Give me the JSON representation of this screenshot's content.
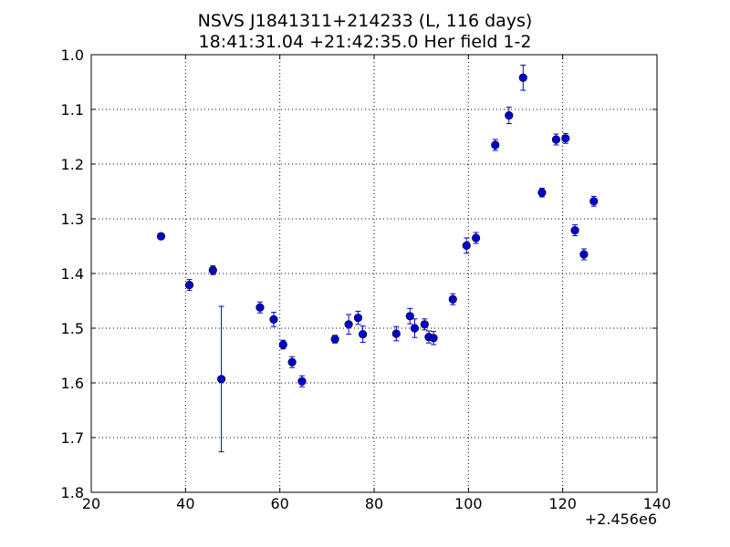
{
  "chart_data": {
    "type": "scatter",
    "title": "NSVS J1841311+214233 (L, 116 days)",
    "subtitle": "18:41:31.04 +21:42:35.0 Her field 1-2",
    "xlabel": "",
    "ylabel": "",
    "x_offset_label": "+2.456e6",
    "xlim": [
      20,
      140
    ],
    "ylim": [
      1.8,
      1.0
    ],
    "y_inverted": true,
    "x_ticks": [
      20,
      40,
      60,
      80,
      100,
      120,
      140
    ],
    "x_tick_labels": [
      "20",
      "40",
      "60",
      "80",
      "100",
      "120",
      "140"
    ],
    "y_ticks": [
      1.0,
      1.1,
      1.2,
      1.3,
      1.4,
      1.5,
      1.6,
      1.7,
      1.8
    ],
    "y_tick_labels": [
      "1.0",
      "1.1",
      "1.2",
      "1.3",
      "1.4",
      "1.5",
      "1.6",
      "1.7",
      "1.8"
    ],
    "grid": true,
    "marker_color": "#0000cc",
    "points": [
      {
        "x": 34.8,
        "y": 1.332,
        "err": 0.005
      },
      {
        "x": 40.8,
        "y": 1.421,
        "err": 0.01
      },
      {
        "x": 45.8,
        "y": 1.394,
        "err": 0.008
      },
      {
        "x": 47.6,
        "y": 1.593,
        "err": 0.133
      },
      {
        "x": 55.8,
        "y": 1.462,
        "err": 0.01
      },
      {
        "x": 58.7,
        "y": 1.484,
        "err": 0.013
      },
      {
        "x": 60.7,
        "y": 1.53,
        "err": 0.008
      },
      {
        "x": 62.6,
        "y": 1.562,
        "err": 0.01
      },
      {
        "x": 64.7,
        "y": 1.597,
        "err": 0.01
      },
      {
        "x": 71.7,
        "y": 1.52,
        "err": 0.007
      },
      {
        "x": 74.6,
        "y": 1.493,
        "err": 0.018
      },
      {
        "x": 76.6,
        "y": 1.481,
        "err": 0.012
      },
      {
        "x": 77.6,
        "y": 1.511,
        "err": 0.015
      },
      {
        "x": 84.7,
        "y": 1.51,
        "err": 0.013
      },
      {
        "x": 87.6,
        "y": 1.478,
        "err": 0.014
      },
      {
        "x": 88.6,
        "y": 1.5,
        "err": 0.017
      },
      {
        "x": 90.7,
        "y": 1.493,
        "err": 0.01
      },
      {
        "x": 91.6,
        "y": 1.516,
        "err": 0.011
      },
      {
        "x": 92.6,
        "y": 1.518,
        "err": 0.012
      },
      {
        "x": 96.7,
        "y": 1.447,
        "err": 0.01
      },
      {
        "x": 99.6,
        "y": 1.349,
        "err": 0.014
      },
      {
        "x": 101.6,
        "y": 1.335,
        "err": 0.01
      },
      {
        "x": 105.7,
        "y": 1.165,
        "err": 0.01
      },
      {
        "x": 108.6,
        "y": 1.111,
        "err": 0.015
      },
      {
        "x": 111.6,
        "y": 1.042,
        "err": 0.023
      },
      {
        "x": 115.6,
        "y": 1.252,
        "err": 0.008
      },
      {
        "x": 118.6,
        "y": 1.155,
        "err": 0.01
      },
      {
        "x": 120.6,
        "y": 1.153,
        "err": 0.009
      },
      {
        "x": 122.6,
        "y": 1.321,
        "err": 0.01
      },
      {
        "x": 124.5,
        "y": 1.365,
        "err": 0.01
      },
      {
        "x": 126.6,
        "y": 1.268,
        "err": 0.009
      }
    ]
  }
}
